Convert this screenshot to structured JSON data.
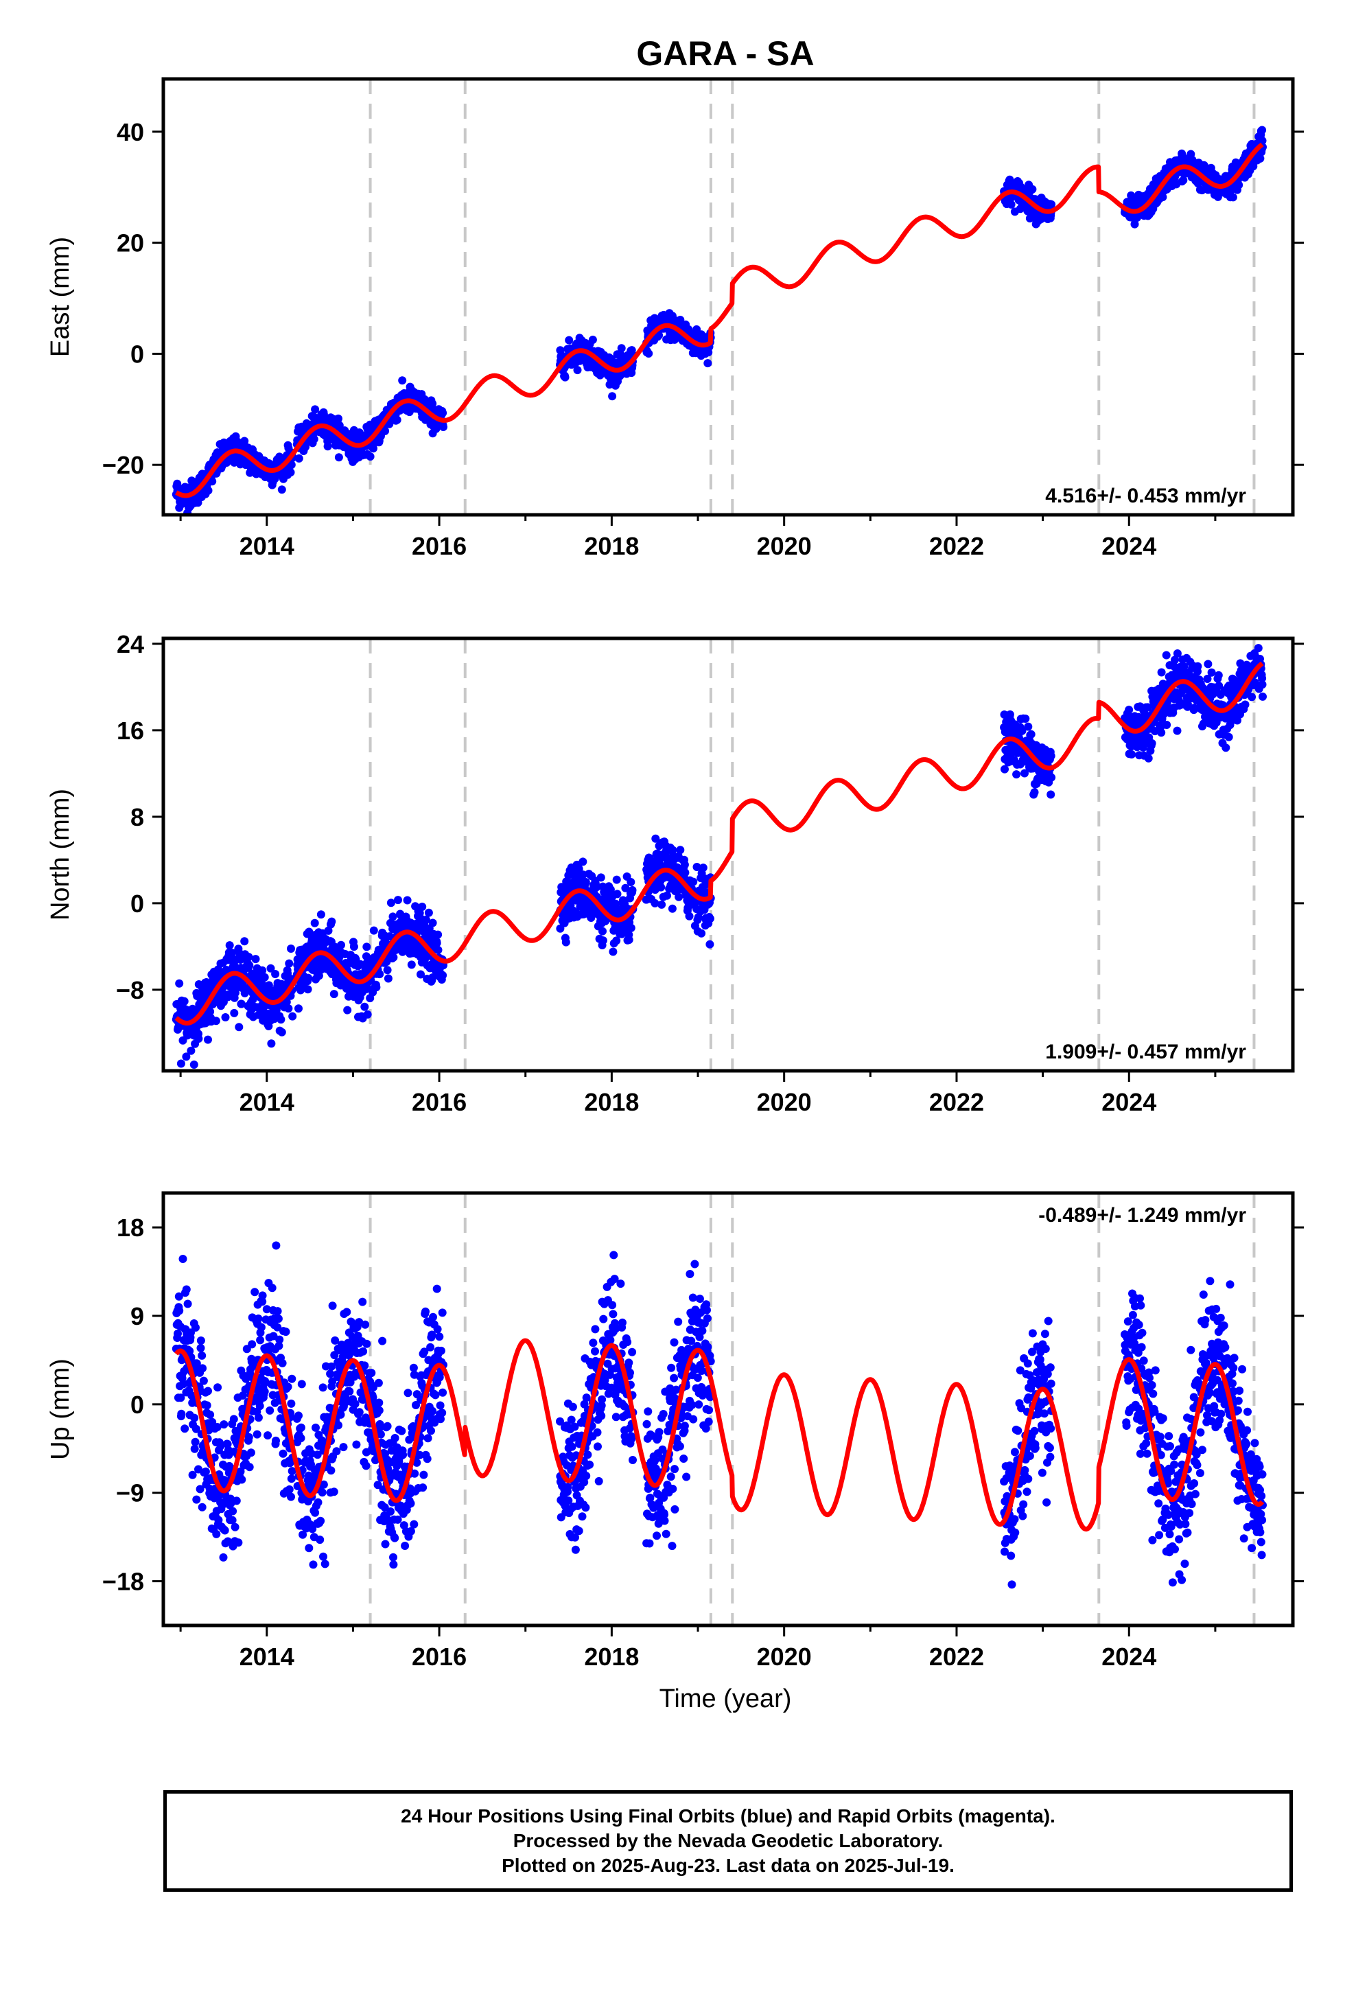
{
  "title": "GARA - SA",
  "xlabel": "Time (year)",
  "footer": {
    "line1": "24 Hour Positions Using Final Orbits (blue) and Rapid Orbits (magenta).",
    "line2": "Processed by the Nevada Geodetic Laboratory.",
    "line3": "Plotted on 2025-Aug-23. Last data on 2025-Jul-19."
  },
  "colors": {
    "points": "#0000ff",
    "model": "#ff0000",
    "breaks": "#c8c8c8"
  },
  "chart_data": [
    {
      "type": "scatter",
      "panel": "east",
      "ylabel": "East (mm)",
      "xlim": [
        2012.8,
        2025.9
      ],
      "ylim": [
        -29,
        49.5
      ],
      "xticks": [
        2014,
        2016,
        2018,
        2020,
        2022,
        2024
      ],
      "yticks": [
        -20,
        0,
        20,
        40
      ],
      "rate_label": "4.516+/- 0.453 mm/yr",
      "rate_position": "bottom-right",
      "breaks": [
        2015.2,
        2016.3,
        2019.15,
        2019.4,
        2023.65,
        2025.45
      ],
      "model": {
        "rate": 4.516,
        "x0": 2019.0,
        "y0": 4.0,
        "annual_amp": 2.8,
        "annual_phase_peak": 0.6,
        "offsets": [
          {
            "x": 2019.15,
            "dy": 2.5
          },
          {
            "x": 2019.4,
            "dy": 3.5
          },
          {
            "x": 2023.65,
            "dy": -4.5
          }
        ]
      },
      "data_segments": [
        [
          2012.95,
          2014.3
        ],
        [
          2014.35,
          2015.2
        ],
        [
          2015.2,
          2016.05
        ],
        [
          2017.4,
          2018.25
        ],
        [
          2018.4,
          2019.15
        ],
        [
          2022.55,
          2023.1
        ],
        [
          2023.95,
          2025.55
        ]
      ],
      "scatter_sd": 1.2
    },
    {
      "type": "scatter",
      "panel": "north",
      "ylabel": "North (mm)",
      "xlim": [
        2012.8,
        2025.9
      ],
      "ylim": [
        -15.5,
        24.5
      ],
      "xticks": [
        2014,
        2016,
        2018,
        2020,
        2022,
        2024
      ],
      "yticks": [
        -8,
        0,
        8,
        16,
        24
      ],
      "rate_label": "1.909+/- 0.457 mm/yr",
      "rate_position": "bottom-right",
      "breaks": [
        2015.2,
        2016.3,
        2019.15,
        2019.4,
        2023.65,
        2025.45
      ],
      "model": {
        "rate": 1.909,
        "x0": 2019.0,
        "y0": 2.0,
        "annual_amp": 1.8,
        "annual_phase_peak": 0.6,
        "offsets": [
          {
            "x": 2019.15,
            "dy": 1.5
          },
          {
            "x": 2019.4,
            "dy": 3.0
          },
          {
            "x": 2023.65,
            "dy": 1.5
          }
        ]
      },
      "data_segments": [
        [
          2012.95,
          2014.3
        ],
        [
          2014.35,
          2015.2
        ],
        [
          2015.2,
          2016.05
        ],
        [
          2017.4,
          2018.25
        ],
        [
          2018.4,
          2019.15
        ],
        [
          2022.55,
          2023.1
        ],
        [
          2023.95,
          2025.55
        ]
      ],
      "scatter_sd": 1.3
    },
    {
      "type": "scatter",
      "panel": "up",
      "ylabel": "Up (mm)",
      "xlim": [
        2012.8,
        2025.9
      ],
      "ylim": [
        -22.5,
        21.5
      ],
      "xticks": [
        2014,
        2016,
        2018,
        2020,
        2022,
        2024
      ],
      "yticks": [
        -18,
        -9,
        0,
        9,
        18
      ],
      "rate_label": "-0.489+/- 1.249 mm/yr",
      "rate_position": "top-right",
      "breaks": [
        2015.2,
        2016.3,
        2019.15,
        2019.4,
        2023.65,
        2025.45
      ],
      "model": {
        "rate": -0.489,
        "x0": 2019.0,
        "y0": -4.5,
        "annual_amp": 7.0,
        "annual_phase_peak": 0.0,
        "offsets": [
          {
            "x": 2016.3,
            "dy": 3.0
          },
          {
            "x": 2019.4,
            "dy": -2.0
          },
          {
            "x": 2023.65,
            "dy": 3.5
          }
        ]
      },
      "data_segments": [
        [
          2012.95,
          2014.3
        ],
        [
          2014.35,
          2015.2
        ],
        [
          2015.2,
          2016.05
        ],
        [
          2017.4,
          2018.25
        ],
        [
          2018.4,
          2019.15
        ],
        [
          2022.55,
          2023.1
        ],
        [
          2023.95,
          2025.55
        ]
      ],
      "scatter_sd": 3.6
    }
  ]
}
